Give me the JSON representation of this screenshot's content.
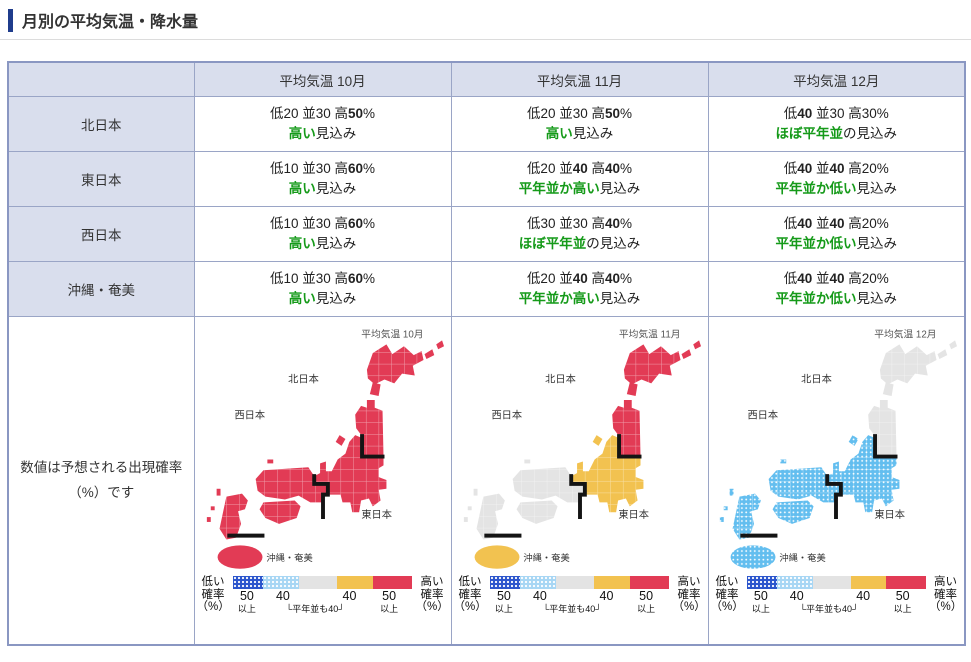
{
  "page": {
    "title": "月別の平均気温・降水量"
  },
  "theme": {
    "accent_blue": "#1F3C8C",
    "header_bg": "#D9DEED",
    "border": "#9AA5C6",
    "outer_border": "#8A97C2",
    "green": "#159A19",
    "red": "#E23B55",
    "yellow": "#F2C250",
    "neutral_gray": "#E4E4E4",
    "map_blue": "#63BEEF",
    "legend_strong_blue": "#2B55CC",
    "legend_light_blue": "#A7D6F4",
    "legend_gray": "#E3E3E3"
  },
  "table": {
    "columns": [
      "平均気温 10月",
      "平均気温 11月",
      "平均気温 12月"
    ],
    "rows": [
      {
        "region": "北日本",
        "cells": [
          {
            "prob": [
              [
                "低20 並30 高",
                0
              ],
              [
                "50",
                1
              ],
              [
                "%",
                0
              ]
            ],
            "forecast": [
              [
                "高い",
                1
              ],
              [
                "見込み",
                0
              ]
            ]
          },
          {
            "prob": [
              [
                "低20 並30 高",
                0
              ],
              [
                "50",
                1
              ],
              [
                "%",
                0
              ]
            ],
            "forecast": [
              [
                "高い",
                1
              ],
              [
                "見込み",
                0
              ]
            ]
          },
          {
            "prob": [
              [
                "低",
                0
              ],
              [
                "40",
                1
              ],
              [
                " 並30 高30%",
                0
              ]
            ],
            "forecast": [
              [
                "ほぼ平年並",
                1
              ],
              [
                "の見込み",
                0
              ]
            ]
          }
        ]
      },
      {
        "region": "東日本",
        "cells": [
          {
            "prob": [
              [
                "低10 並30 高",
                0
              ],
              [
                "60",
                1
              ],
              [
                "%",
                0
              ]
            ],
            "forecast": [
              [
                "高い",
                1
              ],
              [
                "見込み",
                0
              ]
            ]
          },
          {
            "prob": [
              [
                "低20 並",
                0
              ],
              [
                "40",
                1
              ],
              [
                " 高",
                0
              ],
              [
                "40",
                1
              ],
              [
                "%",
                0
              ]
            ],
            "forecast": [
              [
                "平年並か高い",
                1
              ],
              [
                "見込み",
                0
              ]
            ]
          },
          {
            "prob": [
              [
                "低",
                0
              ],
              [
                "40",
                1
              ],
              [
                " 並",
                0
              ],
              [
                "40",
                1
              ],
              [
                " 高20%",
                0
              ]
            ],
            "forecast": [
              [
                "平年並か低い",
                1
              ],
              [
                "見込み",
                0
              ]
            ]
          }
        ]
      },
      {
        "region": "西日本",
        "cells": [
          {
            "prob": [
              [
                "低10 並30 高",
                0
              ],
              [
                "60",
                1
              ],
              [
                "%",
                0
              ]
            ],
            "forecast": [
              [
                "高い",
                1
              ],
              [
                "見込み",
                0
              ]
            ]
          },
          {
            "prob": [
              [
                "低30 並30 高",
                0
              ],
              [
                "40",
                1
              ],
              [
                "%",
                0
              ]
            ],
            "forecast": [
              [
                "ほぼ平年並",
                1
              ],
              [
                "の見込み",
                0
              ]
            ]
          },
          {
            "prob": [
              [
                "低",
                0
              ],
              [
                "40",
                1
              ],
              [
                " 並",
                0
              ],
              [
                "40",
                1
              ],
              [
                " 高20%",
                0
              ]
            ],
            "forecast": [
              [
                "平年並か低い",
                1
              ],
              [
                "見込み",
                0
              ]
            ]
          }
        ]
      },
      {
        "region": "沖縄・奄美",
        "cells": [
          {
            "prob": [
              [
                "低10 並30 高",
                0
              ],
              [
                "60",
                1
              ],
              [
                "%",
                0
              ]
            ],
            "forecast": [
              [
                "高い",
                1
              ],
              [
                "見込み",
                0
              ]
            ]
          },
          {
            "prob": [
              [
                "低20 並",
                0
              ],
              [
                "40",
                1
              ],
              [
                " 高",
                0
              ],
              [
                "40",
                1
              ],
              [
                "%",
                0
              ]
            ],
            "forecast": [
              [
                "平年並か高い",
                1
              ],
              [
                "見込み",
                0
              ]
            ]
          },
          {
            "prob": [
              [
                "低",
                0
              ],
              [
                "40",
                1
              ],
              [
                " 並",
                0
              ],
              [
                "40",
                1
              ],
              [
                " 高20%",
                0
              ]
            ],
            "forecast": [
              [
                "平年並か低い",
                1
              ],
              [
                "見込み",
                0
              ]
            ]
          }
        ]
      }
    ],
    "note": "数値は予想される出現確率（%）です"
  },
  "maps": [
    {
      "title": "平均気温 10月",
      "label_north": "北日本",
      "label_west": "西日本",
      "label_east": "東日本",
      "okinawa_label": "沖縄・奄美",
      "fill_north": "#E23B55",
      "fill_east": "#E23B55",
      "fill_west": "#E23B55",
      "fill_okinawa": "#E23B55"
    },
    {
      "title": "平均気温 11月",
      "label_north": "北日本",
      "label_west": "西日本",
      "label_east": "東日本",
      "okinawa_label": "沖縄・奄美",
      "fill_north": "#E23B55",
      "fill_east": "#F2C250",
      "fill_west": "#E4E4E4",
      "fill_okinawa": "#F2C250"
    },
    {
      "title": "平均気温 12月",
      "label_north": "北日本",
      "label_west": "西日本",
      "label_east": "東日本",
      "okinawa_label": "沖縄・奄美",
      "fill_north": "#E4E4E4",
      "fill_east": "pattern:dots-blue",
      "fill_west": "pattern:dots-blue",
      "fill_okinawa": "pattern:dots-blue"
    }
  ],
  "legend": {
    "low_lines": [
      "低い",
      "確率",
      "（%）"
    ],
    "high_lines": [
      "高い",
      "確率",
      "（%）"
    ],
    "n1": "50",
    "n2": "40",
    "n3": "40",
    "n4": "50",
    "s1": "以上",
    "s2": "└平年並も40┘",
    "s3": "以上"
  }
}
